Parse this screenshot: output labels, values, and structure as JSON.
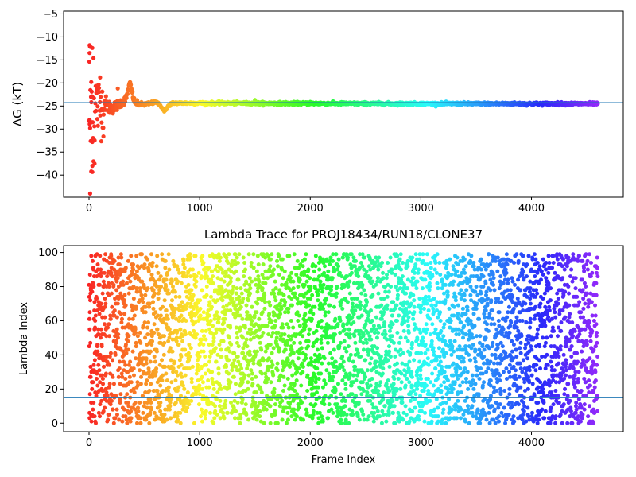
{
  "chart_data": [
    {
      "type": "scatter",
      "title": "",
      "xlabel": "",
      "ylabel": "ΔG (kT)",
      "xlim": [
        -230,
        4830
      ],
      "ylim": [
        -44.8,
        -4.4
      ],
      "xticks": [
        0,
        1000,
        2000,
        3000,
        4000
      ],
      "yticks": [
        -40,
        -35,
        -30,
        -25,
        -20,
        -15,
        -10,
        -5
      ],
      "colormap": "rainbow (reversed: red at frame 0, violet at last frame)",
      "reference_line": {
        "y": -24.3,
        "color": "#1f77b4"
      },
      "n_frames": 4600,
      "series": [
        {
          "description_points": [
            {
              "x": 5,
              "y": -11.8
            },
            {
              "x": 15,
              "y": -12.2
            },
            {
              "x": 30,
              "y": -12.4
            },
            {
              "x": 5,
              "y": -13.5
            },
            {
              "x": 40,
              "y": -14.6
            },
            {
              "x": 20,
              "y": -19.8
            },
            {
              "x": 5,
              "y": -28.0
            },
            {
              "x": 10,
              "y": -29.8
            },
            {
              "x": 15,
              "y": -32.6
            },
            {
              "x": 30,
              "y": -32.8
            },
            {
              "x": 40,
              "y": -37.0
            },
            {
              "x": 50,
              "y": -37.5
            },
            {
              "x": 30,
              "y": -38.0
            },
            {
              "x": 20,
              "y": -39.2
            },
            {
              "x": 10,
              "y": -44.0
            },
            {
              "x": 100,
              "y": -18.8
            },
            {
              "x": 130,
              "y": -31.6
            },
            {
              "x": 260,
              "y": -21.2
            },
            {
              "x": 370,
              "y": -20.0
            },
            {
              "x": 680,
              "y": -26.2
            },
            {
              "x": 1000,
              "y": -24.3
            },
            {
              "x": 1500,
              "y": -23.7
            },
            {
              "x": 2000,
              "y": -24.1
            },
            {
              "x": 3000,
              "y": -24.3
            },
            {
              "x": 3500,
              "y": -24.6
            },
            {
              "x": 4000,
              "y": -24.5
            },
            {
              "x": 4600,
              "y": -24.4
            }
          ]
        }
      ]
    },
    {
      "type": "scatter",
      "title": "Lambda Trace for PROJ18434/RUN18/CLONE37",
      "xlabel": "Frame Index",
      "ylabel": "Lambda Index",
      "xlim": [
        -230,
        4830
      ],
      "ylim": [
        -5,
        104
      ],
      "xticks": [
        0,
        1000,
        2000,
        3000,
        4000
      ],
      "yticks": [
        0,
        20,
        40,
        60,
        80,
        100
      ],
      "colormap": "rainbow (reversed: red at frame 0, violet at last frame)",
      "reference_line": {
        "y": 15,
        "color": "#1f77b4"
      },
      "n_frames": 4600,
      "lambda_range": [
        0,
        99
      ]
    }
  ]
}
